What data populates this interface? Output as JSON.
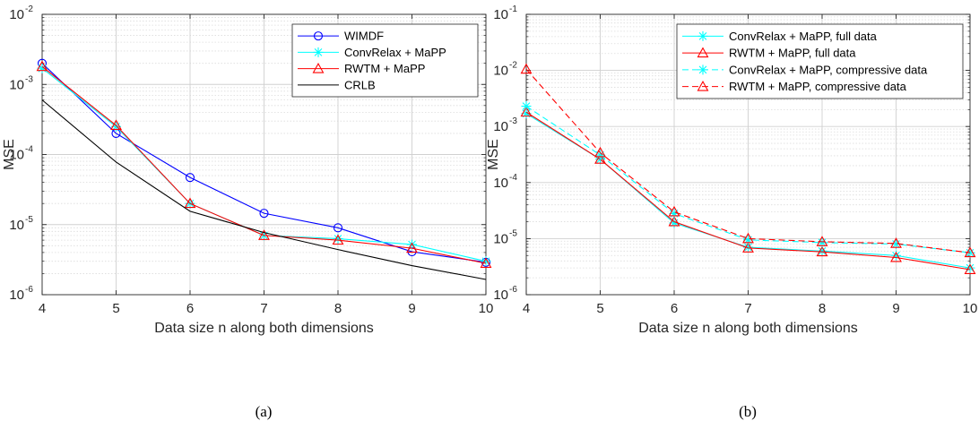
{
  "chart_data": [
    {
      "type": "line",
      "caption": "(a)",
      "xlabel": "Data size n along both dimensions",
      "ylabel": "MSE",
      "x": [
        4,
        5,
        6,
        7,
        8,
        9,
        10
      ],
      "x_ticks": [
        "4",
        "5",
        "6",
        "7",
        "8",
        "9",
        "10"
      ],
      "y_scale": "log",
      "ylim": [
        1e-06,
        0.01
      ],
      "y_ticks": [
        {
          "base": "10",
          "exp": "-6"
        },
        {
          "base": "10",
          "exp": "-5"
        },
        {
          "base": "10",
          "exp": "-4"
        },
        {
          "base": "10",
          "exp": "-3"
        },
        {
          "base": "10",
          "exp": "-2"
        }
      ],
      "grid": true,
      "legend_position": "top-right",
      "series": [
        {
          "name": "WIMDF",
          "color": "#0000ff",
          "marker": "circle",
          "dash": "solid",
          "values": [
            0.002,
            0.0002,
            4.7e-05,
            1.45e-05,
            9e-06,
            4.1e-06,
            2.9e-06
          ]
        },
        {
          "name": "ConvRelax + MaPP",
          "color": "#00ffff",
          "marker": "asterisk",
          "dash": "solid",
          "values": [
            0.0017,
            0.00025,
            2e-05,
            7e-06,
            6.3e-06,
            5.2e-06,
            3e-06
          ]
        },
        {
          "name": "RWTM + MaPP",
          "color": "#ff0000",
          "marker": "triangle",
          "dash": "solid",
          "values": [
            0.0018,
            0.00026,
            2e-05,
            7e-06,
            6e-06,
            4.6e-06,
            2.8e-06
          ]
        },
        {
          "name": "CRLB",
          "color": "#000000",
          "marker": "none",
          "dash": "solid",
          "values": [
            0.0006,
            7.8e-05,
            1.55e-05,
            7.7e-06,
            4.4e-06,
            2.6e-06,
            1.65e-06
          ]
        }
      ]
    },
    {
      "type": "line",
      "caption": "(b)",
      "xlabel": "Data size n along both dimensions",
      "ylabel": "MSE",
      "x": [
        4,
        5,
        6,
        7,
        8,
        9,
        10
      ],
      "x_ticks": [
        "4",
        "5",
        "6",
        "7",
        "8",
        "9",
        "10"
      ],
      "y_scale": "log",
      "ylim": [
        1e-06,
        0.1
      ],
      "y_ticks": [
        {
          "base": "10",
          "exp": "-6"
        },
        {
          "base": "10",
          "exp": "-5"
        },
        {
          "base": "10",
          "exp": "-4"
        },
        {
          "base": "10",
          "exp": "-3"
        },
        {
          "base": "10",
          "exp": "-2"
        },
        {
          "base": "10",
          "exp": "-1"
        }
      ],
      "grid": true,
      "legend_position": "top-right",
      "series": [
        {
          "name": "ConvRelax + MaPP, full data",
          "color": "#00ffff",
          "marker": "asterisk",
          "dash": "solid",
          "values": [
            0.0017,
            0.00026,
            1.9e-05,
            7e-06,
            6e-06,
            5e-06,
            3e-06
          ]
        },
        {
          "name": "RWTM + MaPP, full data",
          "color": "#ff0000",
          "marker": "triangle",
          "dash": "solid",
          "values": [
            0.0018,
            0.00026,
            2e-05,
            6.8e-06,
            5.8e-06,
            4.6e-06,
            2.8e-06
          ]
        },
        {
          "name": "ConvRelax + MaPP, compressive data",
          "color": "#00ffff",
          "marker": "asterisk",
          "dash": "dashed",
          "values": [
            0.0023,
            0.00031,
            2.8e-05,
            9.5e-06,
            8.5e-06,
            8e-06,
            5.6e-06
          ]
        },
        {
          "name": "RWTM + MaPP, compressive data",
          "color": "#ff0000",
          "marker": "triangle",
          "dash": "dashed",
          "values": [
            0.0105,
            0.00034,
            3e-05,
            1e-05,
            8.8e-06,
            8.2e-06,
            5.6e-06
          ]
        }
      ]
    }
  ]
}
